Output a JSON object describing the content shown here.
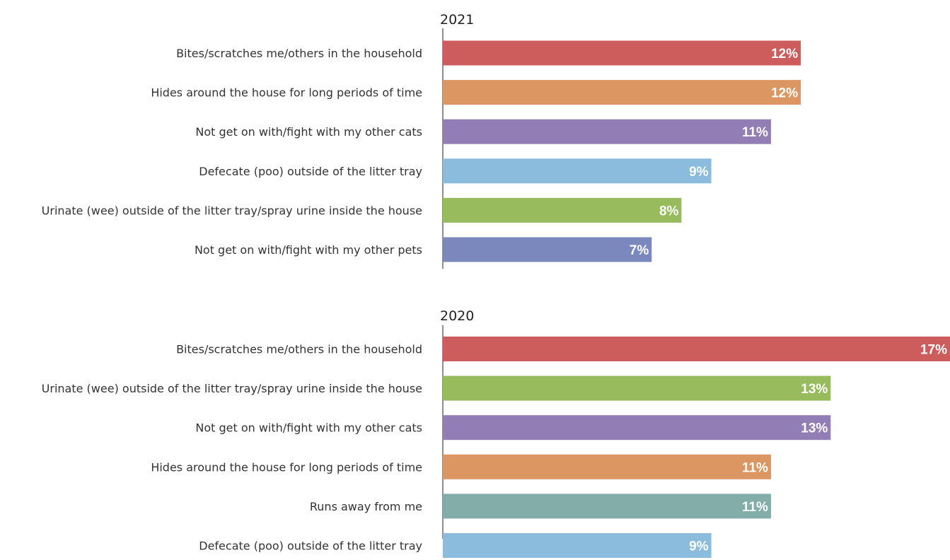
{
  "chart_data": [
    {
      "type": "bar",
      "orientation": "horizontal",
      "title": "2021",
      "categories": [
        "Bites/scratches me/others in the household",
        "Hides around the house for long periods of time",
        "Not get on with/fight with my other cats",
        "Defecate (poo) outside of the litter tray",
        "Urinate (wee) outside of the litter tray/spray urine inside the house",
        "Not get on with/fight with my other pets"
      ],
      "values": [
        12,
        12,
        11,
        9,
        8,
        7
      ],
      "value_labels": [
        "12%",
        "12%",
        "11%",
        "9%",
        "8%",
        "7%"
      ],
      "colors": [
        "#cd5c5c",
        "#dc9662",
        "#927db5",
        "#8bbcdd",
        "#98bb5d",
        "#7b88bd"
      ],
      "unit": "%",
      "xlim": [
        0,
        17
      ]
    },
    {
      "type": "bar",
      "orientation": "horizontal",
      "title": "2020",
      "categories": [
        "Bites/scratches me/others in the household",
        "Urinate (wee) outside of the litter tray/spray urine inside the house",
        "Not get on with/fight with my other cats",
        "Hides around the house for long periods of time",
        "Runs away from me",
        "Defecate (poo) outside of the litter tray"
      ],
      "values": [
        17,
        13,
        13,
        11,
        11,
        9
      ],
      "value_labels": [
        "17%",
        "13%",
        "13%",
        "11%",
        "11%",
        "9%"
      ],
      "colors": [
        "#cd5c5c",
        "#98bb5d",
        "#927db5",
        "#dc9662",
        "#83ada8",
        "#8bbcdd"
      ],
      "unit": "%",
      "xlim": [
        0,
        17
      ]
    }
  ]
}
